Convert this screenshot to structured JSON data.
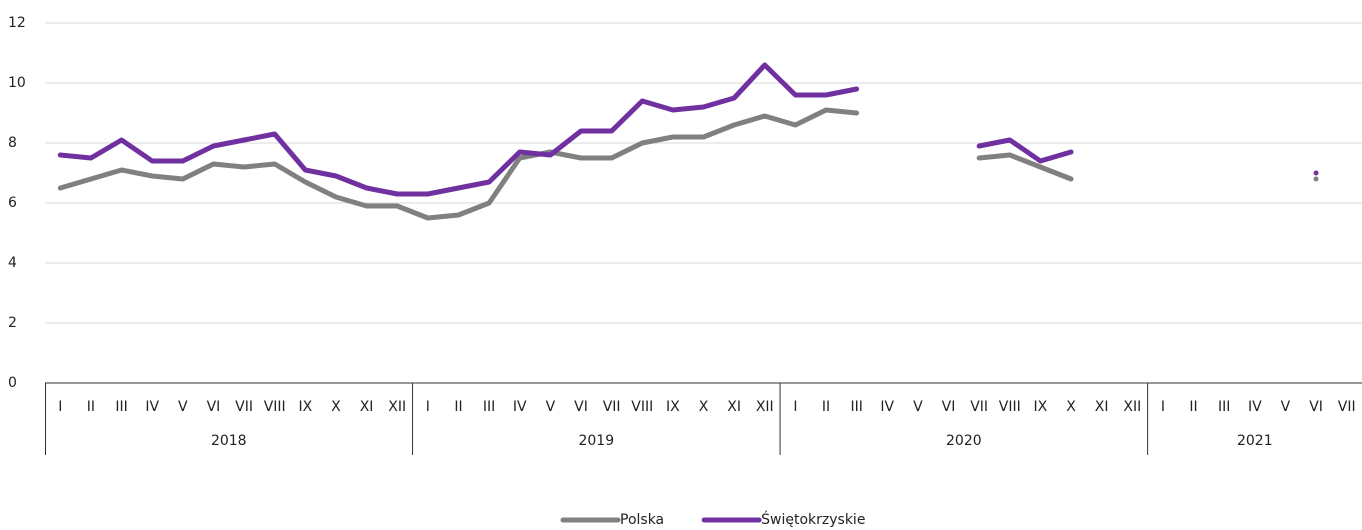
{
  "chart_data": {
    "type": "line",
    "groups": [
      {
        "label": "2018",
        "categories": [
          "I",
          "II",
          "III",
          "IV",
          "V",
          "VI",
          "VII",
          "VIII",
          "IX",
          "X",
          "XI",
          "XII"
        ]
      },
      {
        "label": "2019",
        "categories": [
          "I",
          "II",
          "III",
          "IV",
          "V",
          "VI",
          "VII",
          "VIII",
          "IX",
          "X",
          "XI",
          "XII"
        ]
      },
      {
        "label": "2020",
        "categories": [
          "I",
          "II",
          "III",
          "IV",
          "V",
          "VI",
          "VII",
          "VIII",
          "IX",
          "X",
          "XI",
          "XII"
        ]
      },
      {
        "label": "2021",
        "categories": [
          "I",
          "II",
          "III",
          "IV",
          "V",
          "VI",
          "VII"
        ]
      }
    ],
    "series": [
      {
        "name": "Polska",
        "color": "#808080",
        "values": [
          6.5,
          6.8,
          7.1,
          6.9,
          6.8,
          7.3,
          7.2,
          7.3,
          6.7,
          6.2,
          5.9,
          5.9,
          5.5,
          5.6,
          6.0,
          7.5,
          7.7,
          7.5,
          7.5,
          8.0,
          8.2,
          8.2,
          8.6,
          8.9,
          8.6,
          9.1,
          9.0,
          null,
          null,
          null,
          7.5,
          7.6,
          7.2,
          6.8,
          null,
          null,
          null,
          null,
          null,
          null,
          null,
          6.8,
          null
        ]
      },
      {
        "name": "Świętokrzyskie",
        "color": "#7030a0",
        "values": [
          7.6,
          7.5,
          8.1,
          7.4,
          7.4,
          7.9,
          8.1,
          8.3,
          7.1,
          6.9,
          6.5,
          6.3,
          6.3,
          6.5,
          6.7,
          7.7,
          7.6,
          8.4,
          8.4,
          9.4,
          9.1,
          9.2,
          9.5,
          10.6,
          9.6,
          9.6,
          9.8,
          null,
          null,
          null,
          7.9,
          8.1,
          7.4,
          7.7,
          null,
          null,
          null,
          null,
          null,
          null,
          null,
          7.0,
          null
        ]
      }
    ],
    "ylim": [
      0,
      12
    ],
    "yticks": [
      0,
      2,
      4,
      6,
      8,
      10,
      12
    ],
    "grid": true,
    "legend": "bottom"
  }
}
